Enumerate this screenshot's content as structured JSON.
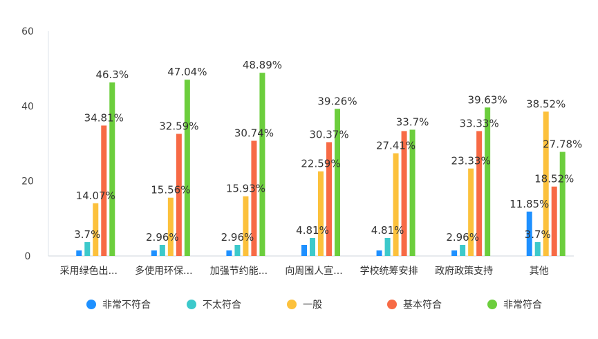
{
  "chart_data": {
    "type": "bar",
    "categories": [
      "采用绿色出...",
      "多使用环保...",
      "加强节约能...",
      "向周围人宣...",
      "学校统筹安排",
      "政府政策支持",
      "其他"
    ],
    "series": [
      {
        "name": "非常不符合",
        "color": "#1e90ff",
        "values": [
          1.48,
          1.48,
          1.48,
          2.96,
          1.48,
          1.48,
          11.85
        ],
        "labels": [
          "",
          "",
          "",
          "",
          "",
          "",
          "11.85%"
        ]
      },
      {
        "name": "不太符合",
        "color": "#3cc9cb",
        "values": [
          3.7,
          2.96,
          2.96,
          4.81,
          4.81,
          2.96,
          3.7
        ],
        "labels": [
          "3.7%",
          "2.96%",
          "2.96%",
          "4.81%",
          "4.81%",
          "2.96%",
          "3.7%"
        ]
      },
      {
        "name": "一般",
        "color": "#fcc13c",
        "values": [
          14.07,
          15.56,
          15.93,
          22.59,
          27.41,
          23.33,
          38.52
        ],
        "labels": [
          "14.07%",
          "15.56%",
          "15.93%",
          "22.59%",
          "27.41%",
          "23.33%",
          "38.52%"
        ]
      },
      {
        "name": "基本符合",
        "color": "#f76a45",
        "values": [
          34.81,
          32.59,
          30.74,
          30.37,
          33.33,
          33.33,
          18.52
        ],
        "labels": [
          "34.81%",
          "32.59%",
          "30.74%",
          "30.37%",
          "",
          "33.33%",
          "18.52%"
        ]
      },
      {
        "name": "非常符合",
        "color": "#6cce3d",
        "values": [
          46.3,
          47.04,
          48.89,
          39.26,
          33.7,
          39.63,
          27.78
        ],
        "labels": [
          "46.3%",
          "47.04%",
          "48.89%",
          "39.26%",
          "33.7%",
          "39.63%",
          "27.78%"
        ]
      }
    ],
    "yticks": [
      "0",
      "20",
      "40",
      "60"
    ],
    "ylim": [
      0,
      60
    ],
    "grid": false,
    "legend": "bottom"
  }
}
